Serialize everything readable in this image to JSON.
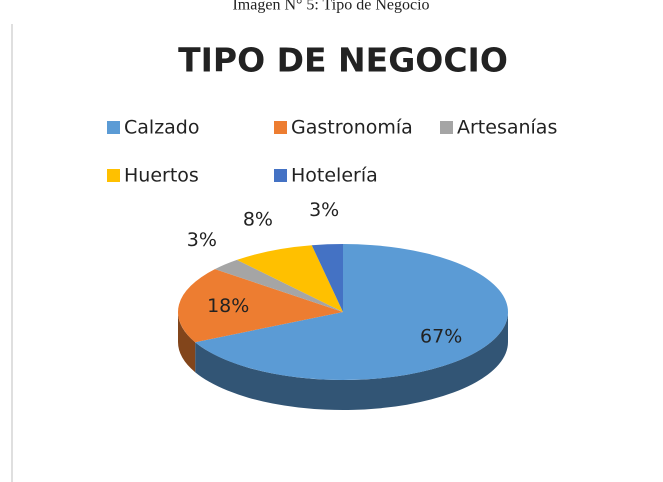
{
  "caption": "Imagen N° 5: Tipo de Negocio",
  "chart_data": {
    "type": "pie",
    "title": "TIPO DE NEGOCIO",
    "categories": [
      "Calzado",
      "Gastronomía",
      "Artesanías",
      "Huertos",
      "Hotelería"
    ],
    "values": [
      67,
      18,
      3,
      8,
      3
    ],
    "value_labels": [
      "67%",
      "18%",
      "3%",
      "8%",
      "3%"
    ],
    "colors": [
      "#5b9bd5",
      "#ed7d31",
      "#a5a5a5",
      "#ffc000",
      "#4472c4"
    ],
    "legend": "top"
  }
}
